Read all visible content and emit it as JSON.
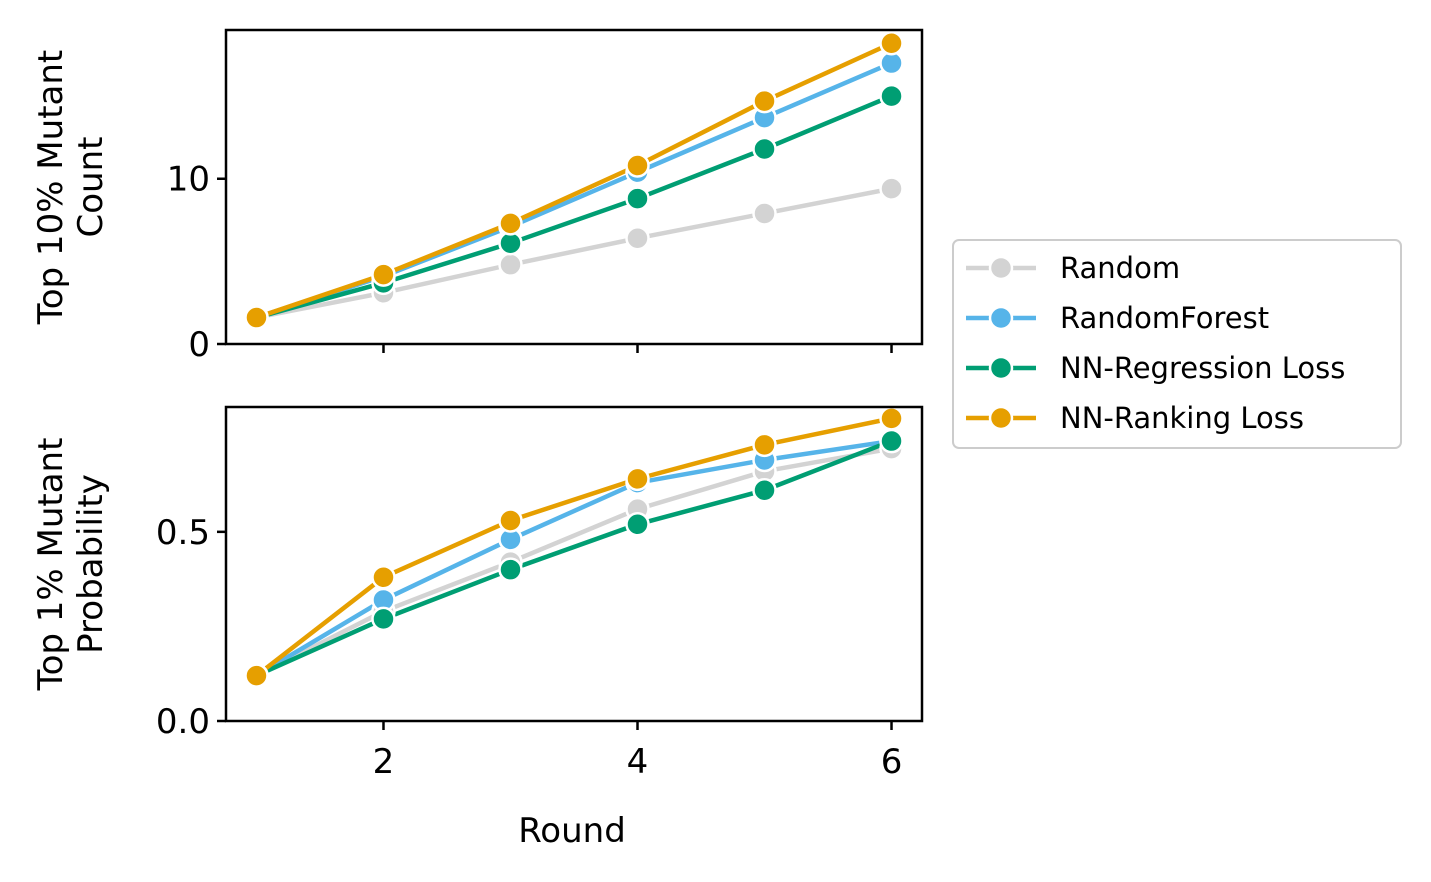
{
  "chart_data": [
    {
      "type": "line",
      "ylabel": "Top 10% Mutant\nCount",
      "ylabel_lines": [
        "Top 10% Mutant",
        "Count"
      ],
      "xlabel": "",
      "x": [
        1,
        2,
        3,
        4,
        5,
        6
      ],
      "xlim": [
        0.76,
        6.24
      ],
      "ylim": [
        0,
        19
      ],
      "yticks": [
        0,
        10
      ],
      "ytick_labels": [
        "0",
        "10"
      ],
      "xticks": [
        2,
        4,
        6
      ],
      "xtick_labels_visible": false,
      "grid": false,
      "series": [
        {
          "name": "Random",
          "color": "#d3d3d3",
          "values": [
            1.6,
            3.1,
            4.8,
            6.4,
            7.9,
            9.4
          ]
        },
        {
          "name": "RandomForest",
          "color": "#56b4e9",
          "values": [
            1.6,
            4.1,
            7.1,
            10.4,
            13.7,
            17.0
          ]
        },
        {
          "name": "NN-Regression Loss",
          "color": "#009e73",
          "values": [
            1.6,
            3.7,
            6.1,
            8.8,
            11.8,
            15.0
          ]
        },
        {
          "name": "NN-Ranking Loss",
          "color": "#e69f00",
          "values": [
            1.6,
            4.2,
            7.3,
            10.8,
            14.7,
            18.2
          ]
        }
      ]
    },
    {
      "type": "line",
      "ylabel_lines": [
        "Top 1% Mutant",
        "Probability"
      ],
      "xlabel": "Round",
      "x": [
        1,
        2,
        3,
        4,
        5,
        6
      ],
      "xlim": [
        0.76,
        6.24
      ],
      "ylim": [
        0,
        0.83
      ],
      "yticks": [
        0,
        0.5
      ],
      "ytick_labels": [
        "0.0",
        "0.5"
      ],
      "xticks": [
        2,
        4,
        6
      ],
      "xtick_labels": [
        "2",
        "4",
        "6"
      ],
      "grid": false,
      "series": [
        {
          "name": "Random",
          "color": "#d3d3d3",
          "values": [
            0.12,
            0.29,
            0.42,
            0.56,
            0.66,
            0.72
          ]
        },
        {
          "name": "RandomForest",
          "color": "#56b4e9",
          "values": [
            0.12,
            0.32,
            0.48,
            0.63,
            0.69,
            0.74
          ]
        },
        {
          "name": "NN-Regression Loss",
          "color": "#009e73",
          "values": [
            0.12,
            0.27,
            0.4,
            0.52,
            0.61,
            0.74
          ]
        },
        {
          "name": "NN-Ranking Loss",
          "color": "#e69f00",
          "values": [
            0.12,
            0.38,
            0.53,
            0.64,
            0.73,
            0.8
          ]
        }
      ]
    }
  ],
  "legend": {
    "placement": "right",
    "entries": [
      "Random",
      "RandomForest",
      "NN-Regression Loss",
      "NN-Ranking Loss"
    ]
  }
}
